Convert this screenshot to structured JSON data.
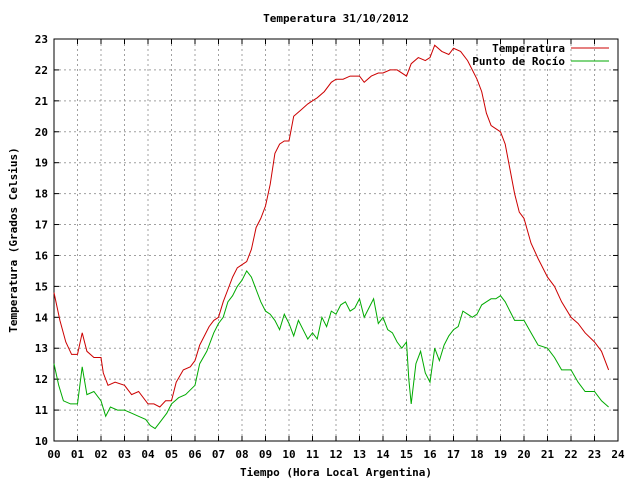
{
  "chart_data": {
    "type": "line",
    "title": "Temperatura 31/10/2012",
    "xlabel": "Tiempo (Hora Local Argentina)",
    "ylabel": "Temperatura (Grados Celsius)",
    "xlim": [
      0,
      24
    ],
    "ylim": [
      10,
      23
    ],
    "xticks": [
      0,
      1,
      2,
      3,
      4,
      5,
      6,
      7,
      8,
      9,
      10,
      11,
      12,
      13,
      14,
      15,
      16,
      17,
      18,
      19,
      20,
      21,
      22,
      23,
      24
    ],
    "xtick_labels": [
      "00",
      "01",
      "02",
      "03",
      "04",
      "05",
      "06",
      "07",
      "08",
      "09",
      "10",
      "11",
      "12",
      "13",
      "14",
      "15",
      "16",
      "17",
      "18",
      "19",
      "20",
      "21",
      "22",
      "23",
      "24"
    ],
    "yticks": [
      10,
      11,
      12,
      13,
      14,
      15,
      16,
      17,
      18,
      19,
      20,
      21,
      22,
      23
    ],
    "grid": true,
    "legend_position": "top-right",
    "series": [
      {
        "name": "Temperatura",
        "color": "#cc0000",
        "x": [
          0,
          0.25,
          0.5,
          0.75,
          1,
          1.2,
          1.4,
          1.7,
          2,
          2.1,
          2.3,
          2.6,
          3,
          3.3,
          3.6,
          4,
          4.25,
          4.5,
          4.75,
          5,
          5.2,
          5.5,
          5.8,
          6,
          6.2,
          6.4,
          6.6,
          6.8,
          7,
          7.2,
          7.4,
          7.6,
          7.8,
          8,
          8.2,
          8.4,
          8.6,
          8.8,
          9,
          9.2,
          9.4,
          9.6,
          9.8,
          10,
          10.2,
          10.5,
          10.8,
          11,
          11.2,
          11.5,
          11.8,
          12,
          12.3,
          12.6,
          13,
          13.2,
          13.5,
          13.8,
          14,
          14.3,
          14.6,
          15,
          15.2,
          15.5,
          15.8,
          16,
          16.2,
          16.5,
          16.8,
          17,
          17.3,
          17.6,
          17.8,
          18,
          18.2,
          18.4,
          18.6,
          18.8,
          19,
          19.2,
          19.4,
          19.6,
          19.8,
          20,
          20.3,
          20.6,
          21,
          21.3,
          21.6,
          22,
          22.3,
          22.6,
          23,
          23.3,
          23.6
        ],
        "values": [
          14.8,
          13.9,
          13.2,
          12.8,
          12.8,
          13.5,
          12.9,
          12.7,
          12.7,
          12.2,
          11.8,
          11.9,
          11.8,
          11.5,
          11.6,
          11.2,
          11.2,
          11.1,
          11.3,
          11.3,
          11.9,
          12.3,
          12.4,
          12.6,
          13.1,
          13.4,
          13.7,
          13.9,
          14.0,
          14.5,
          14.9,
          15.3,
          15.6,
          15.7,
          15.8,
          16.2,
          16.9,
          17.2,
          17.6,
          18.3,
          19.3,
          19.6,
          19.7,
          19.7,
          20.5,
          20.7,
          20.9,
          21.0,
          21.1,
          21.3,
          21.6,
          21.7,
          21.7,
          21.8,
          21.8,
          21.6,
          21.8,
          21.9,
          21.9,
          22.0,
          22.0,
          21.8,
          22.2,
          22.4,
          22.3,
          22.4,
          22.8,
          22.6,
          22.5,
          22.7,
          22.6,
          22.3,
          22.0,
          21.7,
          21.3,
          20.6,
          20.2,
          20.1,
          20.0,
          19.6,
          18.8,
          18.0,
          17.4,
          17.2,
          16.4,
          15.9,
          15.3,
          15.0,
          14.5,
          14.0,
          13.8,
          13.5,
          13.2,
          12.9,
          12.3
        ]
      },
      {
        "name": "Punto de Rocío",
        "color": "#00aa00",
        "x": [
          0,
          0.2,
          0.4,
          0.7,
          1,
          1.2,
          1.4,
          1.7,
          2,
          2.2,
          2.4,
          2.7,
          3,
          3.3,
          3.6,
          3.9,
          4.1,
          4.3,
          4.5,
          4.8,
          5,
          5.3,
          5.6,
          6,
          6.2,
          6.5,
          6.8,
          7,
          7.2,
          7.4,
          7.6,
          7.8,
          8,
          8.2,
          8.4,
          8.6,
          8.8,
          9,
          9.2,
          9.4,
          9.6,
          9.8,
          10,
          10.2,
          10.4,
          10.6,
          10.8,
          11,
          11.2,
          11.4,
          11.6,
          11.8,
          12,
          12.2,
          12.4,
          12.6,
          12.8,
          13,
          13.2,
          13.4,
          13.6,
          13.8,
          14,
          14.2,
          14.4,
          14.6,
          14.8,
          15,
          15.1,
          15.2,
          15.4,
          15.6,
          15.8,
          16,
          16.2,
          16.4,
          16.6,
          16.8,
          17,
          17.2,
          17.4,
          17.6,
          17.8,
          18,
          18.2,
          18.4,
          18.6,
          18.8,
          19,
          19.2,
          19.4,
          19.6,
          19.8,
          20,
          20.3,
          20.6,
          21,
          21.3,
          21.6,
          22,
          22.3,
          22.6,
          23,
          23.3,
          23.6
        ],
        "values": [
          12.5,
          11.8,
          11.3,
          11.2,
          11.2,
          12.4,
          11.5,
          11.6,
          11.3,
          10.8,
          11.1,
          11.0,
          11.0,
          10.9,
          10.8,
          10.7,
          10.5,
          10.4,
          10.6,
          10.9,
          11.2,
          11.4,
          11.5,
          11.8,
          12.5,
          12.9,
          13.5,
          13.8,
          14.0,
          14.5,
          14.7,
          15.0,
          15.2,
          15.5,
          15.3,
          14.9,
          14.5,
          14.2,
          14.1,
          13.9,
          13.6,
          14.1,
          13.8,
          13.4,
          13.9,
          13.6,
          13.3,
          13.5,
          13.3,
          14.0,
          13.7,
          14.2,
          14.1,
          14.4,
          14.5,
          14.2,
          14.3,
          14.6,
          14.0,
          14.3,
          14.6,
          13.8,
          14.0,
          13.6,
          13.5,
          13.2,
          13.0,
          13.2,
          12.0,
          11.2,
          12.5,
          12.9,
          12.2,
          11.9,
          13.0,
          12.6,
          13.1,
          13.4,
          13.6,
          13.7,
          14.2,
          14.1,
          14.0,
          14.1,
          14.4,
          14.5,
          14.6,
          14.6,
          14.7,
          14.5,
          14.2,
          13.9,
          13.9,
          13.9,
          13.5,
          13.1,
          13.0,
          12.7,
          12.3,
          12.3,
          11.9,
          11.6,
          11.6,
          11.3,
          11.1
        ]
      }
    ]
  }
}
